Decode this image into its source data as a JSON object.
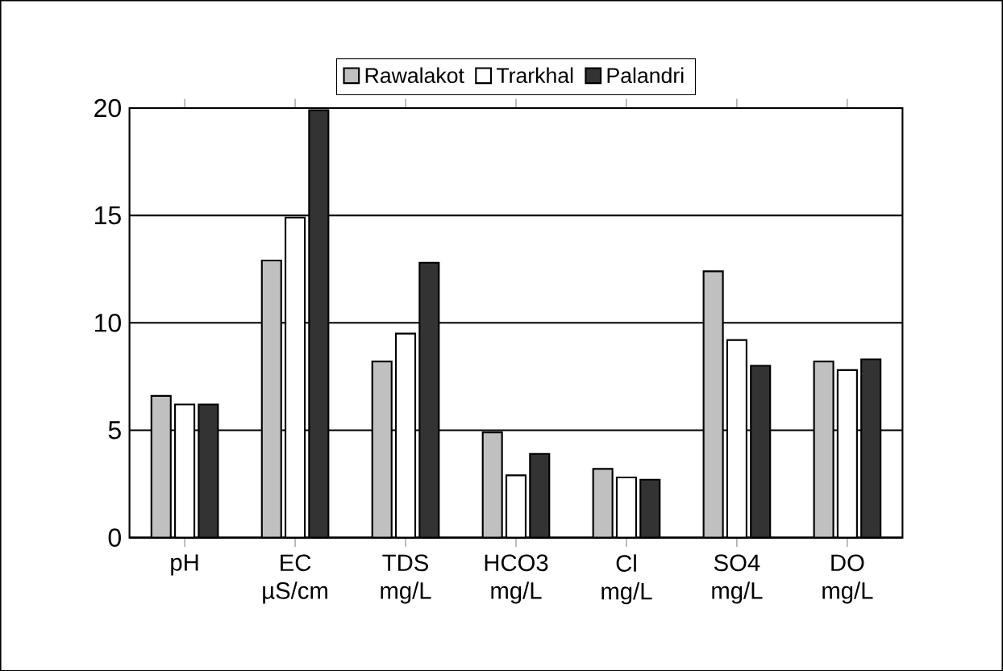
{
  "chart_data": {
    "type": "bar",
    "categories": [
      "pH",
      "EC µS/cm",
      "TDS mg/L",
      "HCO3 mg/L",
      "Cl mg/L",
      "SO4 mg/L",
      "DO mg/L"
    ],
    "series": [
      {
        "name": "Rawalakot",
        "color": "#c0c0c0",
        "values": [
          6.6,
          12.9,
          8.2,
          4.9,
          3.2,
          12.4,
          8.2
        ]
      },
      {
        "name": "Trarkhal",
        "color": "#ffffff",
        "values": [
          6.2,
          14.9,
          9.5,
          2.9,
          2.8,
          9.2,
          7.8
        ]
      },
      {
        "name": "Palandri",
        "color": "#333333",
        "values": [
          6.2,
          19.9,
          12.8,
          3.9,
          2.7,
          8.0,
          8.3
        ]
      }
    ],
    "ylim": [
      0,
      20
    ],
    "yticks": [
      0,
      5,
      10,
      15,
      20
    ],
    "grid": "y",
    "legend": "top"
  }
}
